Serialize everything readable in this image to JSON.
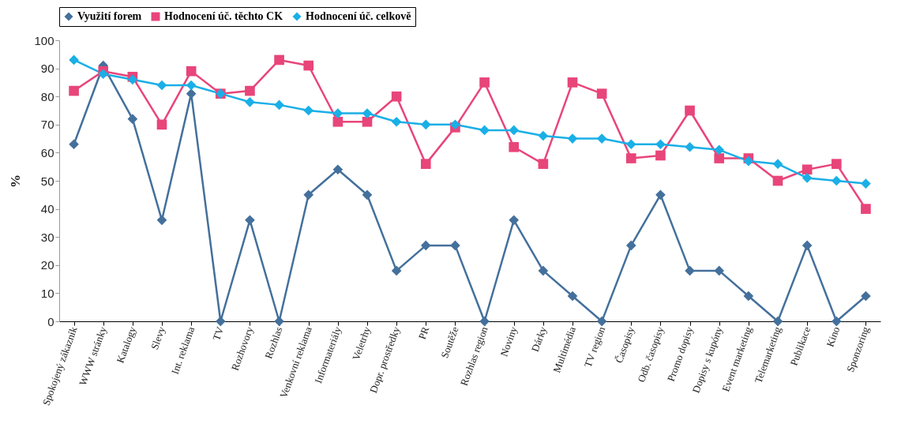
{
  "chart_data": {
    "type": "line",
    "ylabel": "%",
    "legend": "top",
    "line_style": "solid",
    "grid": false,
    "categories": [
      "Spokojený zákazník",
      "WWW stránky",
      "Katalogy",
      "Slevy",
      "Int. reklama",
      "TV",
      "Rozhovory",
      "Rozhlas",
      "Venkovní reklama",
      "Informateriály",
      "Veletrhy",
      "Dopr. prostředky",
      "PR",
      "Soutěže",
      "Rozhlas region",
      "Noviny",
      "Dárky",
      "Multimédia",
      "TV region",
      "Časopisy",
      "Odb. časopisy",
      "Promo dopisy",
      "Dopisy s kupóny",
      "Event marketing",
      "Telemarketing",
      "Publikace",
      "Kino",
      "Sponzoring"
    ],
    "ylim": [
      0,
      100
    ],
    "yticks": [
      0,
      10,
      20,
      30,
      40,
      50,
      60,
      70,
      80,
      90,
      100
    ],
    "series": [
      {
        "name": "Využití forem",
        "color": "#44709c",
        "marker": "diamond",
        "values": [
          63,
          91,
          72,
          36,
          81,
          0,
          36,
          0,
          45,
          54,
          45,
          18,
          27,
          27,
          0,
          36,
          18,
          9,
          0,
          27,
          45,
          18,
          18,
          9,
          0,
          27,
          0,
          9
        ]
      },
      {
        "name": "Hodnocení úč. těchto CK",
        "color": "#e8457a",
        "marker": "square",
        "values": [
          82,
          89,
          87,
          70,
          89,
          81,
          82,
          93,
          91,
          71,
          71,
          80,
          56,
          69,
          85,
          62,
          56,
          85,
          81,
          58,
          59,
          75,
          58,
          58,
          50,
          54,
          56,
          40
        ]
      },
      {
        "name": "Hodnocení úč. celkově",
        "color": "#1aafe6",
        "marker": "diamond",
        "values": [
          93,
          88,
          86,
          84,
          84,
          81,
          78,
          77,
          75,
          74,
          74,
          71,
          70,
          70,
          68,
          68,
          66,
          65,
          65,
          63,
          63,
          62,
          61,
          57,
          56,
          51,
          50,
          49
        ]
      }
    ]
  }
}
